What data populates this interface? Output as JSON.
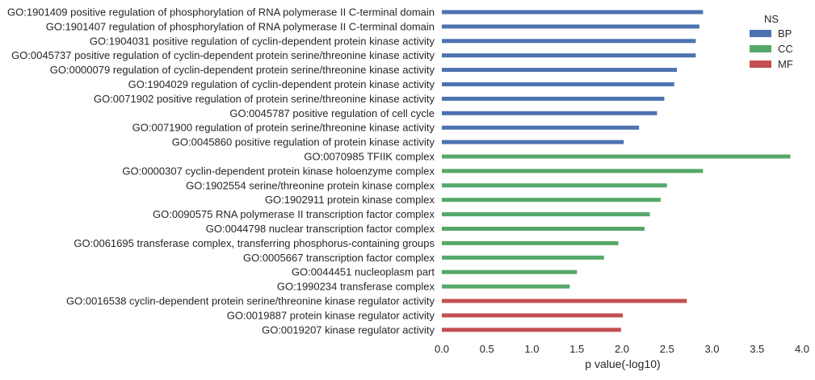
{
  "chart_data": {
    "type": "bar",
    "orientation": "horizontal",
    "xlabel": "p value(-log10)",
    "ylabel": "",
    "xlim": [
      0.0,
      4.0
    ],
    "xticks": [
      "0.0",
      "0.5",
      "1.0",
      "1.5",
      "2.0",
      "2.5",
      "3.0",
      "3.5",
      "4.0"
    ],
    "grid": false,
    "legend": {
      "title": "NS",
      "position": "top-right",
      "entries": [
        {
          "name": "BP",
          "color": "#4c72b0"
        },
        {
          "name": "CC",
          "color": "#55a868"
        },
        {
          "name": "MF",
          "color": "#c44e52"
        }
      ]
    },
    "bars": [
      {
        "label": "GO:1901409 positive regulation of phosphorylation of RNA polymerase II C-terminal domain",
        "value": 2.9,
        "ns": "BP"
      },
      {
        "label": "GO:1901407 regulation of phosphorylation of RNA polymerase II C-terminal domain",
        "value": 2.86,
        "ns": "BP"
      },
      {
        "label": "GO:1904031 positive regulation of cyclin-dependent protein kinase activity",
        "value": 2.82,
        "ns": "BP"
      },
      {
        "label": "GO:0045737 positive regulation of cyclin-dependent protein serine/threonine kinase activity",
        "value": 2.82,
        "ns": "BP"
      },
      {
        "label": "GO:0000079 regulation of cyclin-dependent protein serine/threonine kinase activity",
        "value": 2.61,
        "ns": "BP"
      },
      {
        "label": "GO:1904029 regulation of cyclin-dependent protein kinase activity",
        "value": 2.58,
        "ns": "BP"
      },
      {
        "label": "GO:0071902 positive regulation of protein serine/threonine kinase activity",
        "value": 2.47,
        "ns": "BP"
      },
      {
        "label": "GO:0045787 positive regulation of cell cycle",
        "value": 2.39,
        "ns": "BP"
      },
      {
        "label": "GO:0071900 regulation of protein serine/threonine kinase activity",
        "value": 2.19,
        "ns": "BP"
      },
      {
        "label": "GO:0045860 positive regulation of protein kinase activity",
        "value": 2.02,
        "ns": "BP"
      },
      {
        "label": "GO:0070985 TFIIK complex",
        "value": 3.87,
        "ns": "CC"
      },
      {
        "label": "GO:0000307 cyclin-dependent protein kinase holoenzyme complex",
        "value": 2.9,
        "ns": "CC"
      },
      {
        "label": "GO:1902554 serine/threonine protein kinase complex",
        "value": 2.5,
        "ns": "CC"
      },
      {
        "label": "GO:1902911 protein kinase complex",
        "value": 2.43,
        "ns": "CC"
      },
      {
        "label": "GO:0090575 RNA polymerase II transcription factor complex",
        "value": 2.31,
        "ns": "CC"
      },
      {
        "label": "GO:0044798 nuclear transcription factor complex",
        "value": 2.25,
        "ns": "CC"
      },
      {
        "label": "GO:0061695 transferase complex, transferring phosphorus-containing groups",
        "value": 1.96,
        "ns": "CC"
      },
      {
        "label": "GO:0005667 transcription factor complex",
        "value": 1.8,
        "ns": "CC"
      },
      {
        "label": "GO:0044451 nucleoplasm part",
        "value": 1.5,
        "ns": "CC"
      },
      {
        "label": "GO:1990234 transferase complex",
        "value": 1.42,
        "ns": "CC"
      },
      {
        "label": "GO:0016538 cyclin-dependent protein serine/threonine kinase regulator activity",
        "value": 2.72,
        "ns": "MF"
      },
      {
        "label": "GO:0019887 protein kinase regulator activity",
        "value": 2.01,
        "ns": "MF"
      },
      {
        "label": "GO:0019207 kinase regulator activity",
        "value": 1.99,
        "ns": "MF"
      }
    ]
  }
}
